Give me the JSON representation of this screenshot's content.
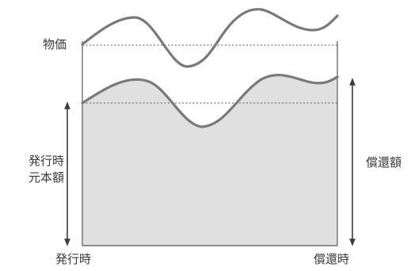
{
  "labels": {
    "price": "物価",
    "issue_principal": [
      "発行時",
      "元本額"
    ],
    "redemption_amount": "償還額",
    "issue_time": "発行時",
    "redemption_time": "償還時"
  },
  "colors": {
    "line": "#7a7a7a",
    "fill": "#e0e0e0",
    "frame": "#6e6e6e",
    "dotted": "#777777",
    "arrow": "#3c3c3c",
    "text": "#3a3a3a"
  }
}
